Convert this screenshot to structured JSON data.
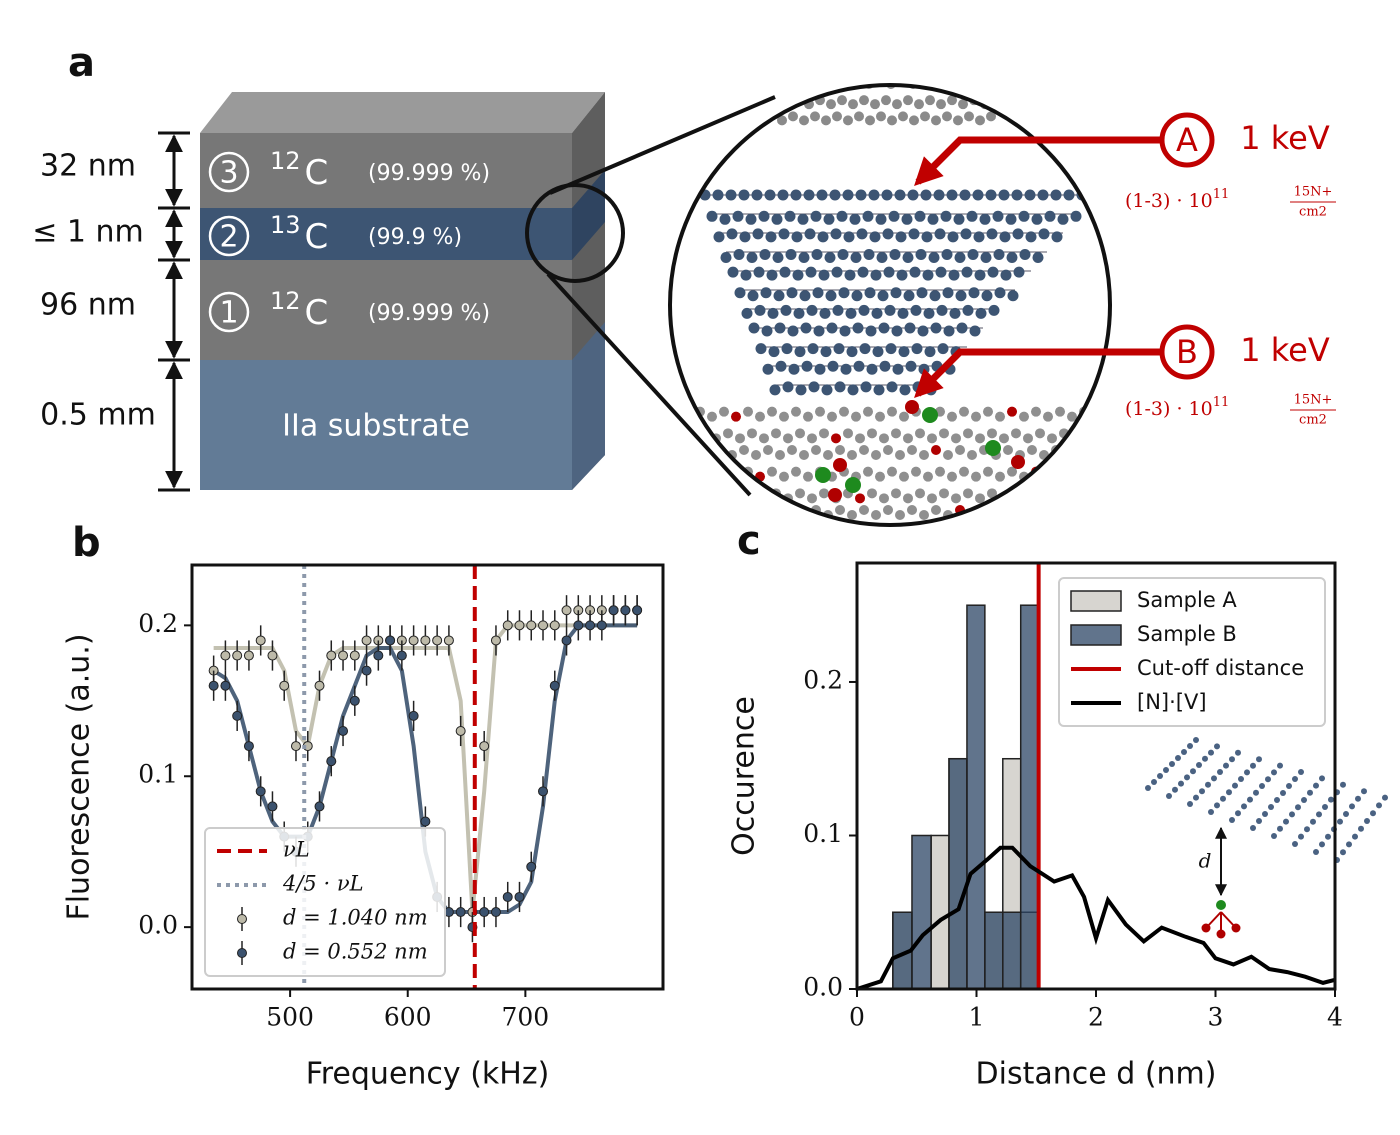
{
  "panel_a": {
    "label": "a",
    "thickness": [
      "32 nm",
      "≤ 1 nm",
      "96 nm",
      "0.5 mm"
    ],
    "layers": [
      {
        "number": "3",
        "mass": "12",
        "element": "C",
        "purity": "(99.999 %)"
      },
      {
        "number": "2",
        "mass": "13",
        "element": "C",
        "purity": "(99.9 %)"
      },
      {
        "number": "1",
        "mass": "12",
        "element": "C",
        "purity": "(99.999 %)"
      }
    ],
    "substrate": "IIa substrate",
    "implants": [
      {
        "label": "A",
        "energy": "1 keV",
        "dose": {
          "prefix": "(1-3) · 10",
          "exp": "11",
          "num": "15N+",
          "den": "cm2"
        }
      },
      {
        "label": "B",
        "energy": "1 keV",
        "dose": {
          "prefix": "(1-3) · 10",
          "exp": "11",
          "num": "15N+",
          "den": "cm2"
        }
      }
    ]
  },
  "chart_data": [
    {
      "type": "scatter",
      "panel": "b",
      "xlabel": "Frequency (kHz)",
      "ylabel": "Fluorescence (a.u.)",
      "xlim": [
        416.6,
        817
      ],
      "ylim": [
        -0.041,
        0.24
      ],
      "xticks": [
        500,
        600,
        700
      ],
      "yticks": [
        {
          "value": 0,
          "label": "0.0"
        },
        {
          "value": 0.1,
          "label": "0.1"
        },
        {
          "value": 0.2,
          "label": "0.2"
        }
      ],
      "legend": "lower left",
      "x": [
        435,
        445,
        455,
        465,
        475,
        485,
        495,
        505,
        515,
        525,
        535,
        545,
        555,
        565,
        575,
        585,
        595,
        605,
        615,
        625,
        635,
        645,
        655,
        665,
        675,
        685,
        695,
        705,
        715,
        725,
        735,
        745,
        755,
        765,
        775,
        785,
        795
      ],
      "series": [
        {
          "name": "d = 1.040 nm",
          "color": "#bdbaa9",
          "values": [
            0.17,
            0.18,
            0.18,
            0.18,
            0.19,
            0.18,
            0.16,
            0.12,
            0.12,
            0.16,
            0.18,
            0.18,
            0.18,
            0.19,
            0.19,
            0.19,
            0.19,
            0.19,
            0.19,
            0.19,
            0.19,
            0.13,
            0.01,
            0.12,
            0.19,
            0.2,
            0.2,
            0.2,
            0.2,
            0.2,
            0.21,
            0.21,
            0.21,
            0.21,
            0.21,
            0.21,
            0.21
          ],
          "errors": [
            0.01,
            0.01,
            0.01,
            0.01,
            0.01,
            0.01,
            0.01,
            0.01,
            0.01,
            0.01,
            0.01,
            0.01,
            0.01,
            0.01,
            0.01,
            0.01,
            0.01,
            0.01,
            0.01,
            0.01,
            0.01,
            0.01,
            0.01,
            0.01,
            0.01,
            0.01,
            0.01,
            0.01,
            0.01,
            0.01,
            0.01,
            0.01,
            0.01,
            0.01,
            0.01,
            0.01,
            0.01
          ],
          "fit": [
            0.185,
            0.185,
            0.185,
            0.185,
            0.185,
            0.185,
            0.17,
            0.13,
            0.12,
            0.16,
            0.18,
            0.185,
            0.185,
            0.185,
            0.185,
            0.185,
            0.185,
            0.185,
            0.185,
            0.185,
            0.185,
            0.15,
            0.01,
            0.09,
            0.19,
            0.2,
            0.2,
            0.2,
            0.2,
            0.2,
            0.2,
            0.2,
            0.2,
            0.2,
            0.2,
            0.2,
            0.2
          ]
        },
        {
          "name": "d = 0.552 nm",
          "color": "#3b526e",
          "values": [
            0.16,
            0.16,
            0.14,
            0.12,
            0.09,
            0.08,
            0.06,
            0.05,
            0.06,
            0.08,
            0.11,
            0.13,
            0.15,
            0.17,
            0.18,
            0.19,
            0.18,
            0.14,
            0.07,
            0.02,
            0.01,
            0.01,
            0.0,
            0.01,
            0.01,
            0.02,
            0.02,
            0.04,
            0.09,
            0.16,
            0.19,
            0.2,
            0.2,
            0.2,
            0.21,
            0.21,
            0.21
          ],
          "errors": [
            0.01,
            0.01,
            0.01,
            0.01,
            0.01,
            0.01,
            0.01,
            0.01,
            0.01,
            0.01,
            0.01,
            0.01,
            0.01,
            0.01,
            0.01,
            0.01,
            0.01,
            0.01,
            0.01,
            0.01,
            0.01,
            0.01,
            0.01,
            0.01,
            0.01,
            0.01,
            0.01,
            0.01,
            0.01,
            0.01,
            0.01,
            0.01,
            0.01,
            0.01,
            0.01,
            0.01,
            0.01
          ],
          "fit": [
            0.17,
            0.165,
            0.15,
            0.12,
            0.09,
            0.07,
            0.06,
            0.06,
            0.06,
            0.08,
            0.11,
            0.14,
            0.16,
            0.18,
            0.185,
            0.185,
            0.17,
            0.12,
            0.05,
            0.02,
            0.01,
            0.01,
            0.01,
            0.01,
            0.01,
            0.01,
            0.015,
            0.03,
            0.08,
            0.15,
            0.19,
            0.2,
            0.2,
            0.2,
            0.2,
            0.2,
            0.2
          ]
        }
      ],
      "vlines": [
        {
          "name": "νL",
          "x": 657,
          "color": "#c00000",
          "style": "dashed"
        },
        {
          "name": "4/5 · νL",
          "x": 512,
          "color": "#8d99ab",
          "style": "dotted"
        }
      ]
    },
    {
      "type": "histogram",
      "panel": "c",
      "xlabel": "Distance d (nm)",
      "ylabel": "Occurence",
      "xlim": [
        0,
        4
      ],
      "ylim": [
        0,
        0.2775
      ],
      "xticks": [
        0,
        1,
        2,
        3,
        4
      ],
      "yticks": [
        {
          "value": 0,
          "label": "0.0"
        },
        {
          "value": 0.1,
          "label": "0.1"
        },
        {
          "value": 0.2,
          "label": "0.2"
        }
      ],
      "legend": "upper right",
      "bins": [
        0.3,
        0.46,
        0.62,
        0.77,
        0.92,
        1.07,
        1.22,
        1.37,
        1.52
      ],
      "series": [
        {
          "name": "Sample A",
          "color": "#c9c7c0",
          "values": [
            0.05,
            0,
            0.1,
            0.15,
            0,
            0.05,
            0.15,
            0.05
          ]
        },
        {
          "name": "Sample B",
          "color": "#2c4566",
          "values": [
            0.05,
            0.1,
            0,
            0.15,
            0.25,
            0.05,
            0.05,
            0.25
          ]
        }
      ],
      "vlines": [
        {
          "name": "Cut-off distance",
          "x": 1.52,
          "color": "#c00000",
          "style": "solid"
        }
      ],
      "lines": [
        {
          "name": "[N]·[V]",
          "color": "#000000",
          "x": [
            0,
            0.2,
            0.3,
            0.45,
            0.55,
            0.7,
            0.85,
            0.95,
            1.1,
            1.2,
            1.3,
            1.45,
            1.55,
            1.65,
            1.8,
            1.9,
            2.0,
            2.1,
            2.25,
            2.4,
            2.55,
            2.75,
            2.9,
            3.0,
            3.15,
            3.3,
            3.45,
            3.6,
            3.75,
            3.9,
            4.0
          ],
          "values": [
            0,
            0.005,
            0.02,
            0.025,
            0.035,
            0.045,
            0.052,
            0.075,
            0.085,
            0.092,
            0.092,
            0.08,
            0.075,
            0.07,
            0.074,
            0.06,
            0.033,
            0.058,
            0.042,
            0.031,
            0.04,
            0.034,
            0.03,
            0.02,
            0.016,
            0.021,
            0.013,
            0.011,
            0.008,
            0.004,
            0.006
          ]
        }
      ],
      "inset_label": "d"
    }
  ]
}
